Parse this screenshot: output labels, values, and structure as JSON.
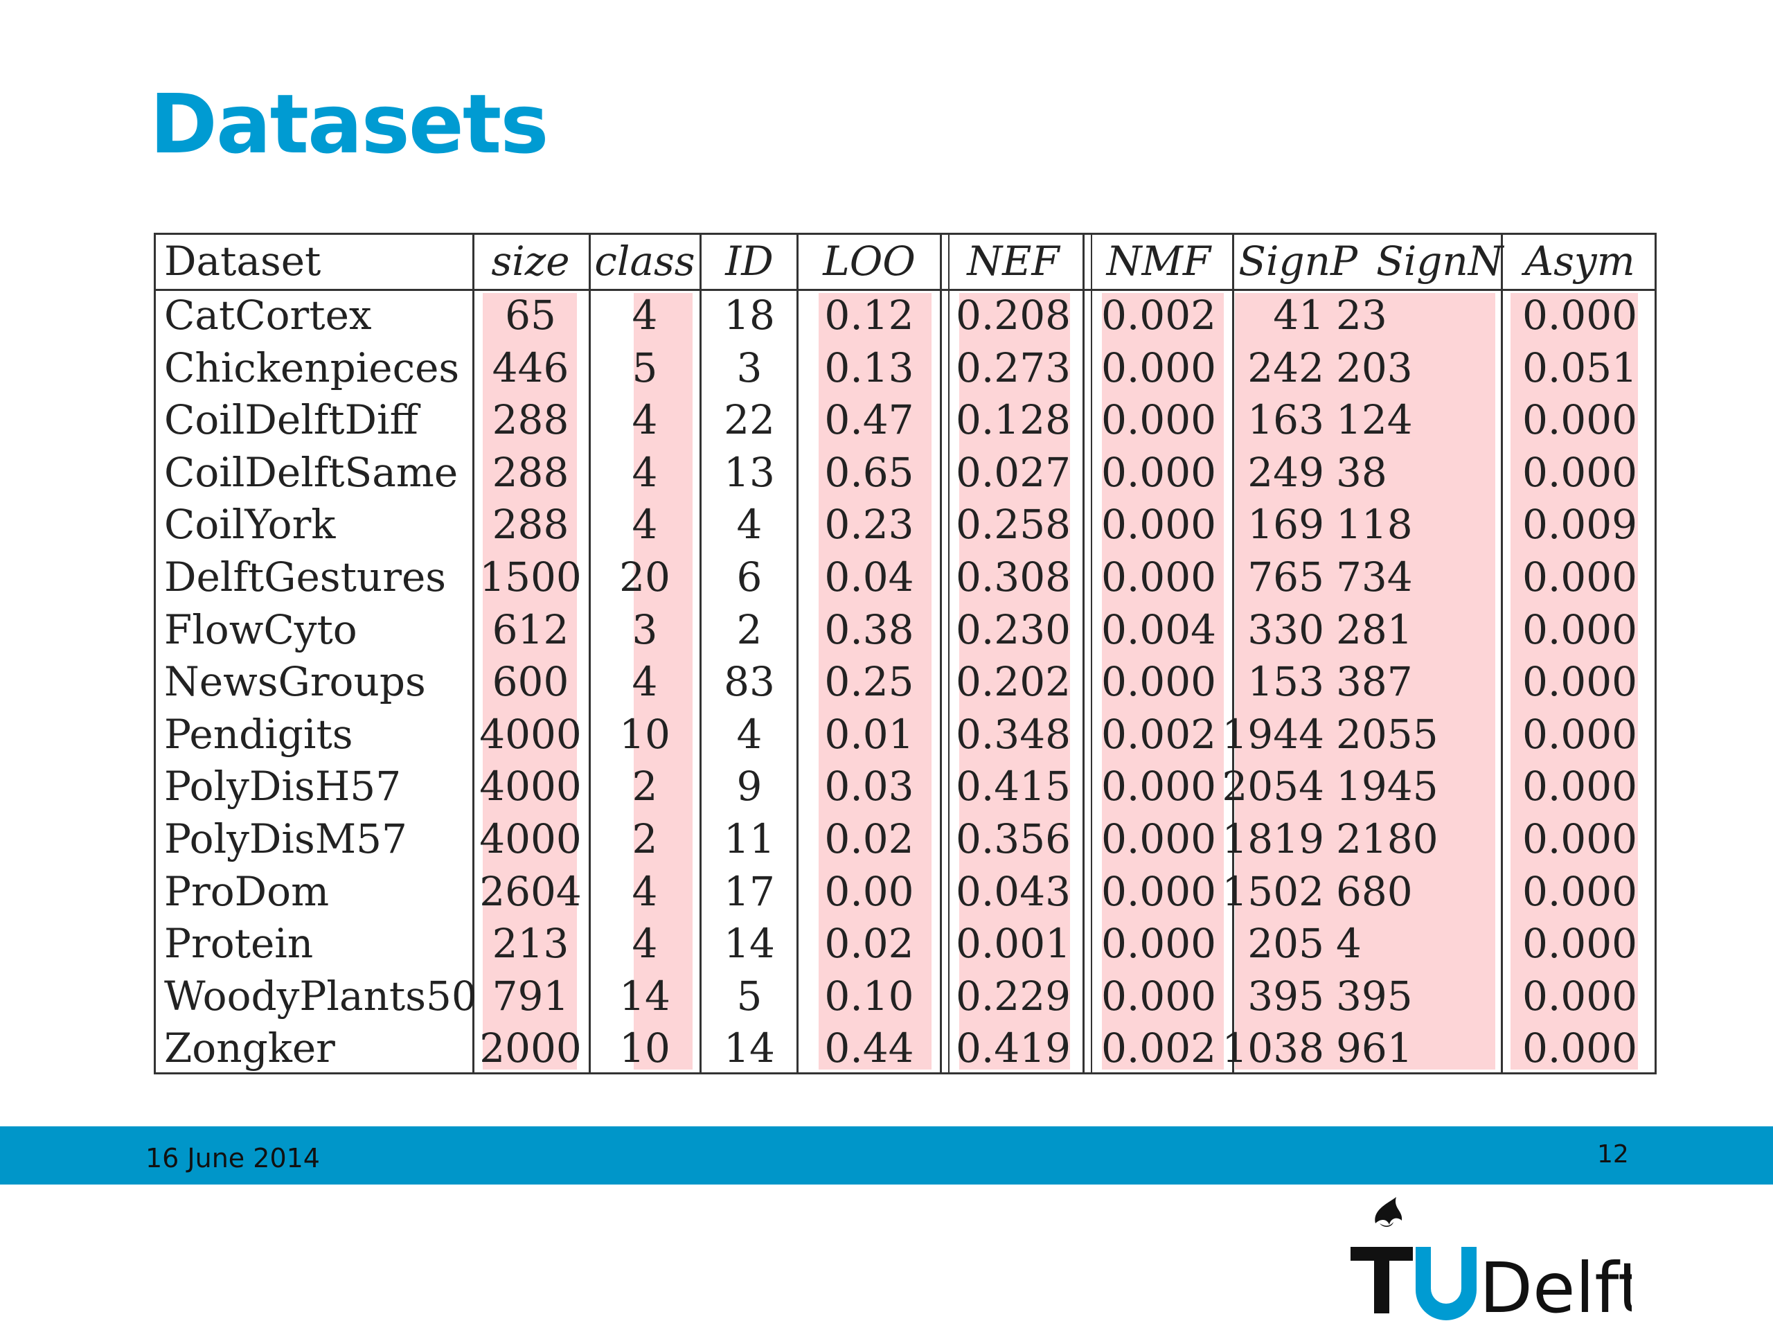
{
  "slide": {
    "title": "Datasets",
    "date": "16 June 2014",
    "page_number": "12",
    "logo_text": "TUDelft"
  },
  "colors": {
    "title": "#009bd2",
    "footer_bar": "#0096c9",
    "band": "#fdd5d7"
  },
  "table": {
    "headers": [
      "Dataset",
      "size",
      "class",
      "ID",
      "LOO",
      "NEF",
      "NMF",
      "SignP",
      "SignN",
      "Asym"
    ],
    "rows": [
      [
        "CatCortex",
        "65",
        "4",
        "18",
        "0.12",
        "0.208",
        "0.002",
        "41",
        "23",
        "0.000"
      ],
      [
        "Chickenpieces",
        "446",
        "5",
        "3",
        "0.13",
        "0.273",
        "0.000",
        "242",
        "203",
        "0.051"
      ],
      [
        "CoilDelftDiff",
        "288",
        "4",
        "22",
        "0.47",
        "0.128",
        "0.000",
        "163",
        "124",
        "0.000"
      ],
      [
        "CoilDelftSame",
        "288",
        "4",
        "13",
        "0.65",
        "0.027",
        "0.000",
        "249",
        "38",
        "0.000"
      ],
      [
        "CoilYork",
        "288",
        "4",
        "4",
        "0.23",
        "0.258",
        "0.000",
        "169",
        "118",
        "0.009"
      ],
      [
        "DelftGestures",
        "1500",
        "20",
        "6",
        "0.04",
        "0.308",
        "0.000",
        "765",
        "734",
        "0.000"
      ],
      [
        "FlowCyto",
        "612",
        "3",
        "2",
        "0.38",
        "0.230",
        "0.004",
        "330",
        "281",
        "0.000"
      ],
      [
        "NewsGroups",
        "600",
        "4",
        "83",
        "0.25",
        "0.202",
        "0.000",
        "153",
        "387",
        "0.000"
      ],
      [
        "Pendigits",
        "4000",
        "10",
        "4",
        "0.01",
        "0.348",
        "0.002",
        "1944",
        "2055",
        "0.000"
      ],
      [
        "PolyDisH57",
        "4000",
        "2",
        "9",
        "0.03",
        "0.415",
        "0.000",
        "2054",
        "1945",
        "0.000"
      ],
      [
        "PolyDisM57",
        "4000",
        "2",
        "11",
        "0.02",
        "0.356",
        "0.000",
        "1819",
        "2180",
        "0.000"
      ],
      [
        "ProDom",
        "2604",
        "4",
        "17",
        "0.00",
        "0.043",
        "0.000",
        "1502",
        "680",
        "0.000"
      ],
      [
        "Protein",
        "213",
        "4",
        "14",
        "0.02",
        "0.001",
        "0.000",
        "205",
        "4",
        "0.000"
      ],
      [
        "WoodyPlants50",
        "791",
        "14",
        "5",
        "0.10",
        "0.229",
        "0.000",
        "395",
        "395",
        "0.000"
      ],
      [
        "Zongker",
        "2000",
        "10",
        "14",
        "0.44",
        "0.419",
        "0.002",
        "1038",
        "961",
        "0.000"
      ]
    ]
  }
}
